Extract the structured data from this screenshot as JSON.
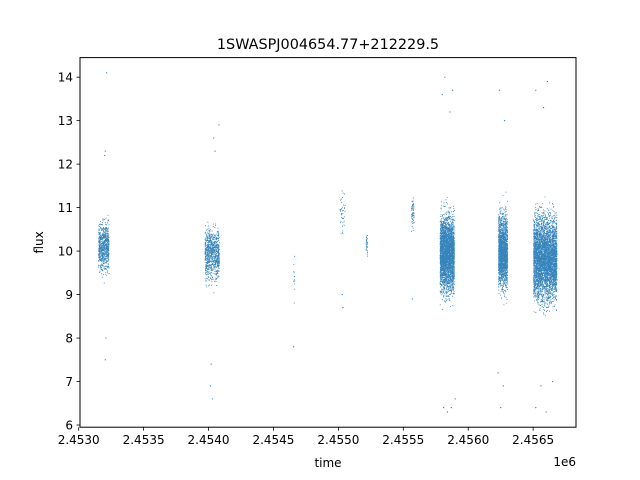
{
  "chart_data": {
    "type": "scatter",
    "title": "1SWASPJ004654.77+212229.5",
    "xlabel": "time",
    "ylabel": "flux",
    "x_offset_label": "1e6",
    "x_scale": 1000000,
    "xlim": [
      2.45301,
      2.45683
    ],
    "ylim": [
      5.95,
      14.45
    ],
    "x_ticks": [
      2.453,
      2.4535,
      2.454,
      2.4545,
      2.455,
      2.4555,
      2.456,
      2.4565
    ],
    "x_tick_labels": [
      "2.4530",
      "2.4535",
      "2.4540",
      "2.4545",
      "2.4550",
      "2.4555",
      "2.4560",
      "2.4565"
    ],
    "y_ticks": [
      6,
      7,
      8,
      9,
      10,
      11,
      12,
      13,
      14
    ],
    "y_tick_labels": [
      "6",
      "7",
      "8",
      "9",
      "10",
      "11",
      "12",
      "13",
      "14"
    ],
    "grid": false,
    "marker_color": "#1f77b4",
    "series": [
      {
        "clusters": [
          {
            "x_range": [
              2453150,
              2453230
            ],
            "core": [
              9.0,
              11.2
            ],
            "density": 700,
            "extremes": [
              [
                2453215,
                14.1
              ],
              [
                2453205,
                12.3
              ],
              [
                2453200,
                12.2
              ],
              [
                2453210,
                8.0
              ],
              [
                2453205,
                7.5
              ]
            ]
          },
          {
            "x_range": [
              2453970,
              2454080
            ],
            "core": [
              8.8,
              11.1
            ],
            "density": 800,
            "extremes": [
              [
                2454040,
                12.6
              ],
              [
                2454050,
                12.3
              ],
              [
                2454080,
                12.9
              ],
              [
                2454020,
                7.4
              ],
              [
                2454015,
                6.9
              ],
              [
                2454030,
                6.6
              ]
            ]
          },
          {
            "x_range": [
              2454650,
              2454660
            ],
            "core": [
              8.3,
              10.4
            ],
            "density": 12,
            "extremes": [
              [
                2454655,
                7.8
              ]
            ]
          },
          {
            "x_range": [
              2455010,
              2455050
            ],
            "core": [
              10.0,
              11.8
            ],
            "density": 40,
            "extremes": [
              [
                2455030,
                9.0
              ],
              [
                2455035,
                8.7
              ]
            ]
          },
          {
            "x_range": [
              2455210,
              2455220
            ],
            "core": [
              9.4,
              10.9
            ],
            "density": 30,
            "extremes": []
          },
          {
            "x_range": [
              2455560,
              2455580
            ],
            "core": [
              10.2,
              11.6
            ],
            "density": 60,
            "extremes": [
              [
                2455570,
                8.9
              ]
            ]
          },
          {
            "x_range": [
              2455780,
              2455890
            ],
            "core": [
              8.3,
              11.6
            ],
            "density": 3200,
            "extremes": [
              [
                2455820,
                14.0
              ],
              [
                2455800,
                13.6
              ],
              [
                2455880,
                13.7
              ],
              [
                2455860,
                13.2
              ],
              [
                2455810,
                6.4
              ],
              [
                2455840,
                6.3
              ],
              [
                2455870,
                6.4
              ],
              [
                2455900,
                6.6
              ]
            ]
          },
          {
            "x_range": [
              2456230,
              2456300
            ],
            "core": [
              8.4,
              11.6
            ],
            "density": 1800,
            "extremes": [
              [
                2456240,
                13.7
              ],
              [
                2456280,
                13.0
              ],
              [
                2456250,
                6.4
              ],
              [
                2456270,
                6.9
              ],
              [
                2456230,
                7.2
              ]
            ]
          },
          {
            "x_range": [
              2456500,
              2456680
            ],
            "core": [
              8.0,
              11.7
            ],
            "density": 4200,
            "extremes": [
              [
                2456520,
                13.7
              ],
              [
                2456610,
                13.9
              ],
              [
                2456580,
                13.3
              ],
              [
                2456520,
                6.4
              ],
              [
                2456600,
                6.3
              ],
              [
                2456560,
                6.9
              ],
              [
                2456650,
                7.0
              ]
            ]
          }
        ]
      }
    ]
  }
}
